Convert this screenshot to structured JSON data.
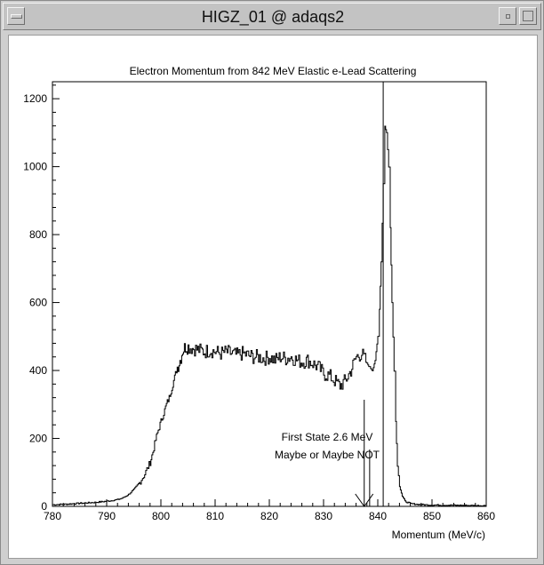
{
  "window": {
    "title": "HIGZ_01 @ adaqs2"
  },
  "chart_data": {
    "type": "histogram",
    "title": "Electron Momentum from 842 MeV Elastic e-Lead Scattering",
    "xlabel": "Momentum (MeV/c)",
    "ylabel": "",
    "xlim": [
      780,
      860
    ],
    "ylim": [
      0,
      1250
    ],
    "xticks": [
      780,
      790,
      800,
      810,
      820,
      830,
      840,
      850,
      860
    ],
    "yticks": [
      0,
      200,
      400,
      600,
      800,
      1000,
      1200
    ],
    "vertical_line_x": 841,
    "series": [
      {
        "x": [
          780,
          782,
          784,
          786,
          788,
          790,
          792,
          793,
          794,
          795,
          796,
          797,
          798,
          798.5,
          799,
          799.5,
          800,
          800.5,
          801,
          801.5,
          802,
          802.5,
          803,
          803.5,
          804,
          804.5,
          805,
          806,
          807,
          808,
          809,
          810,
          811,
          812,
          813,
          814,
          815,
          816,
          817,
          818,
          819,
          820,
          821,
          822,
          823,
          824,
          825,
          826,
          827,
          828,
          829,
          830,
          831,
          832,
          833,
          834,
          835,
          836,
          837,
          838,
          838.5,
          839,
          839.5,
          840,
          840.3,
          840.6,
          841,
          841.3,
          841.6,
          842,
          842.3,
          842.6,
          843,
          843.3,
          843.6,
          844,
          844.5,
          845,
          846,
          848,
          850,
          855,
          860
        ],
        "y": [
          5,
          6,
          8,
          10,
          12,
          15,
          20,
          25,
          35,
          50,
          70,
          95,
          130,
          160,
          195,
          225,
          250,
          275,
          300,
          320,
          350,
          380,
          410,
          430,
          460,
          470,
          470,
          465,
          460,
          455,
          460,
          455,
          450,
          455,
          450,
          445,
          450,
          445,
          440,
          440,
          435,
          440,
          430,
          440,
          435,
          440,
          430,
          425,
          430,
          420,
          410,
          390,
          385,
          370,
          355,
          370,
          400,
          440,
          450,
          420,
          410,
          400,
          430,
          500,
          580,
          720,
          950,
          1120,
          1100,
          1000,
          820,
          600,
          400,
          250,
          120,
          60,
          30,
          15,
          8,
          5,
          4,
          3,
          2
        ]
      }
    ],
    "annotation": {
      "lines": [
        "First State 2.6 MeV",
        "Maybe or Maybe NOT"
      ],
      "arrow_x": [
        837.5,
        838.5
      ]
    }
  }
}
